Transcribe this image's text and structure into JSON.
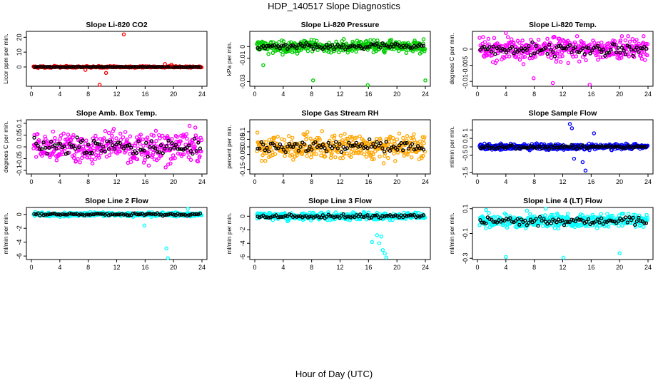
{
  "page": {
    "title": "HDP_140517  Slope Diagnostics",
    "xlabel": "Hour of Day (UTC)"
  },
  "chart_data": [
    {
      "type": "scatter",
      "title": "Slope Li-820 CO2",
      "ylabel": "Licor ppm per min.",
      "xlim": [
        0,
        24
      ],
      "ylim": [
        -13,
        24
      ],
      "yticks": [
        0,
        10,
        20
      ],
      "xticks": [
        0,
        4,
        8,
        12,
        16,
        20,
        24
      ],
      "color": "#ff0000",
      "noise": 0.35,
      "clip": [
        -1,
        1.3
      ],
      "outliers": [
        [
          13.0,
          22
        ],
        [
          9.6,
          -12
        ],
        [
          10.5,
          -4
        ],
        [
          7.6,
          -2
        ],
        [
          18.8,
          2
        ],
        [
          19.7,
          1.5
        ]
      ]
    },
    {
      "type": "scatter",
      "title": "Slope Li-820 Pressure",
      "ylabel": "kPa per min.",
      "xlim": [
        0,
        24
      ],
      "ylim": [
        -0.034,
        0.013
      ],
      "yticks": [
        -0.03,
        -0.01,
        0.0
      ],
      "xticks": [
        0,
        4,
        8,
        12,
        16,
        20,
        24
      ],
      "color": "#00cc00",
      "noise": 0.0035,
      "clip": [
        -0.012,
        0.012
      ],
      "outliers": [
        [
          8.2,
          -0.029
        ],
        [
          15.9,
          -0.033
        ],
        [
          24.0,
          -0.029
        ],
        [
          1.2,
          -0.016
        ]
      ]
    },
    {
      "type": "scatter",
      "title": "Slope Li-820 Temp.",
      "ylabel": "degrees C per min.",
      "xlim": [
        0,
        24
      ],
      "ylim": [
        -0.0115,
        0.0055
      ],
      "yticks": [
        -0.01,
        -0.005,
        0.0
      ],
      "xticks": [
        0,
        4,
        8,
        12,
        16,
        20,
        24
      ],
      "color": "#ff00ff",
      "noise": 0.0024,
      "clip": [
        -0.008,
        0.004
      ],
      "outliers": [
        [
          4.0,
          0.005
        ],
        [
          15.8,
          -0.011
        ],
        [
          10.6,
          -0.0105
        ],
        [
          7.9,
          -0.009
        ]
      ]
    },
    {
      "type": "scatter",
      "title": "Slope Amb. Box Temp.",
      "ylabel": "degrees C per min.",
      "xlim": [
        0,
        24
      ],
      "ylim": [
        -0.115,
        0.115
      ],
      "yticks": [
        -0.1,
        -0.05,
        0.0,
        0.05,
        0.1
      ],
      "xticks": [
        0,
        4,
        8,
        12,
        16,
        20,
        24
      ],
      "color": "#ff00ff",
      "noise": 0.045,
      "clip": [
        -0.105,
        0.105
      ],
      "outliers": []
    },
    {
      "type": "scatter",
      "title": "Slope Gas Stream RH",
      "ylabel": "percent per min.",
      "xlim": [
        0,
        24
      ],
      "ylim": [
        -0.18,
        0.18
      ],
      "yticks": [
        -0.15,
        -0.05,
        0.0,
        0.05,
        0.1
      ],
      "xticks": [
        0,
        4,
        8,
        12,
        16,
        20,
        24
      ],
      "color": "#ffa500",
      "noise": 0.055,
      "clip": [
        -0.16,
        0.16
      ],
      "outliers": []
    },
    {
      "type": "scatter",
      "title": "Slope Sample Flow",
      "ylabel": "ml/min per min.",
      "xlim": [
        0,
        24
      ],
      "ylim": [
        -1.6,
        1.6
      ],
      "yticks": [
        -1.5,
        -0.5,
        0.0,
        0.5,
        1.0
      ],
      "xticks": [
        0,
        4,
        8,
        12,
        16,
        20,
        24
      ],
      "color": "#0000ff",
      "noise": 0.12,
      "clip": [
        -0.6,
        0.6
      ],
      "outliers": [
        [
          13.0,
          1.35
        ],
        [
          13.3,
          1.1
        ],
        [
          15.2,
          -1.4
        ],
        [
          14.8,
          -0.9
        ],
        [
          16.4,
          0.8
        ],
        [
          13.6,
          -0.7
        ]
      ]
    },
    {
      "type": "scatter",
      "title": "Slope Line 2 Flow",
      "ylabel": "ml/min per min.",
      "xlim": [
        0,
        24
      ],
      "ylim": [
        -6.5,
        1.0
      ],
      "yticks": [
        -6,
        -4,
        -2,
        0
      ],
      "xticks": [
        0,
        4,
        8,
        12,
        16,
        20,
        24
      ],
      "color": "#00ffff",
      "noise": 0.2,
      "clip": [
        -0.4,
        0.7
      ],
      "outliers": [
        [
          19.2,
          -6.3
        ],
        [
          19.0,
          -4.9
        ],
        [
          15.9,
          -1.6
        ],
        [
          22.0,
          0.8
        ]
      ]
    },
    {
      "type": "scatter",
      "title": "Slope Line 3 Flow",
      "ylabel": "ml/min per min.",
      "xlim": [
        0,
        24
      ],
      "ylim": [
        -6.4,
        1.3
      ],
      "yticks": [
        -6,
        -4,
        -2,
        0
      ],
      "xticks": [
        0,
        4,
        8,
        12,
        16,
        20,
        24
      ],
      "color": "#00ffff",
      "noise": 0.35,
      "clip": [
        -0.8,
        1.1
      ],
      "outliers": [
        [
          18.0,
          -5.0
        ],
        [
          18.3,
          -5.5
        ],
        [
          18.5,
          -6.1
        ],
        [
          17.5,
          -4.0
        ],
        [
          16.5,
          -3.8
        ],
        [
          17.8,
          -3.0
        ],
        [
          17.2,
          -2.8
        ]
      ]
    },
    {
      "type": "scatter",
      "title": "Slope Line 4 (LT) Flow",
      "ylabel": "ml/min per min.",
      "xlim": [
        0,
        24
      ],
      "ylim": [
        -0.31,
        0.11
      ],
      "yticks": [
        -0.3,
        -0.1,
        0.1
      ],
      "xticks": [
        0,
        4,
        8,
        12,
        16,
        20,
        24
      ],
      "color": "#00ffff",
      "noise": 0.04,
      "clip": [
        -0.1,
        0.1
      ],
      "outliers": [
        [
          4.0,
          -0.29
        ],
        [
          12.1,
          -0.295
        ],
        [
          20.0,
          -0.26
        ],
        [
          9.6,
          0.1
        ]
      ]
    }
  ]
}
